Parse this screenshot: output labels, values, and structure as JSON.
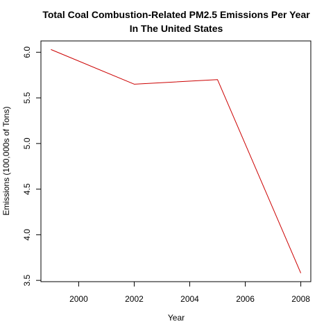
{
  "chart_data": {
    "type": "line",
    "title_lines": [
      "Total Coal Combustion-Related PM2.5 Emissions Per Year",
      "In The United States"
    ],
    "xlabel": "Year",
    "ylabel": "Emissions (100,000s of Tons)",
    "x": [
      1999,
      2002,
      2005,
      2008
    ],
    "series": [
      {
        "values": [
          6.03,
          5.65,
          5.7,
          3.58
        ],
        "color": "#cc0000"
      }
    ],
    "xlim": [
      1998.64,
      2008.36
    ],
    "ylim": [
      3.486,
      6.124
    ],
    "xticks": [
      2000,
      2002,
      2004,
      2006,
      2008
    ],
    "yticks": [
      3.5,
      4.0,
      4.5,
      5.0,
      5.5,
      6.0
    ],
    "ytick_labels": [
      "3.5",
      "4.0",
      "4.5",
      "5.0",
      "5.5",
      "6.0"
    ],
    "grid": false,
    "legend": "none"
  }
}
